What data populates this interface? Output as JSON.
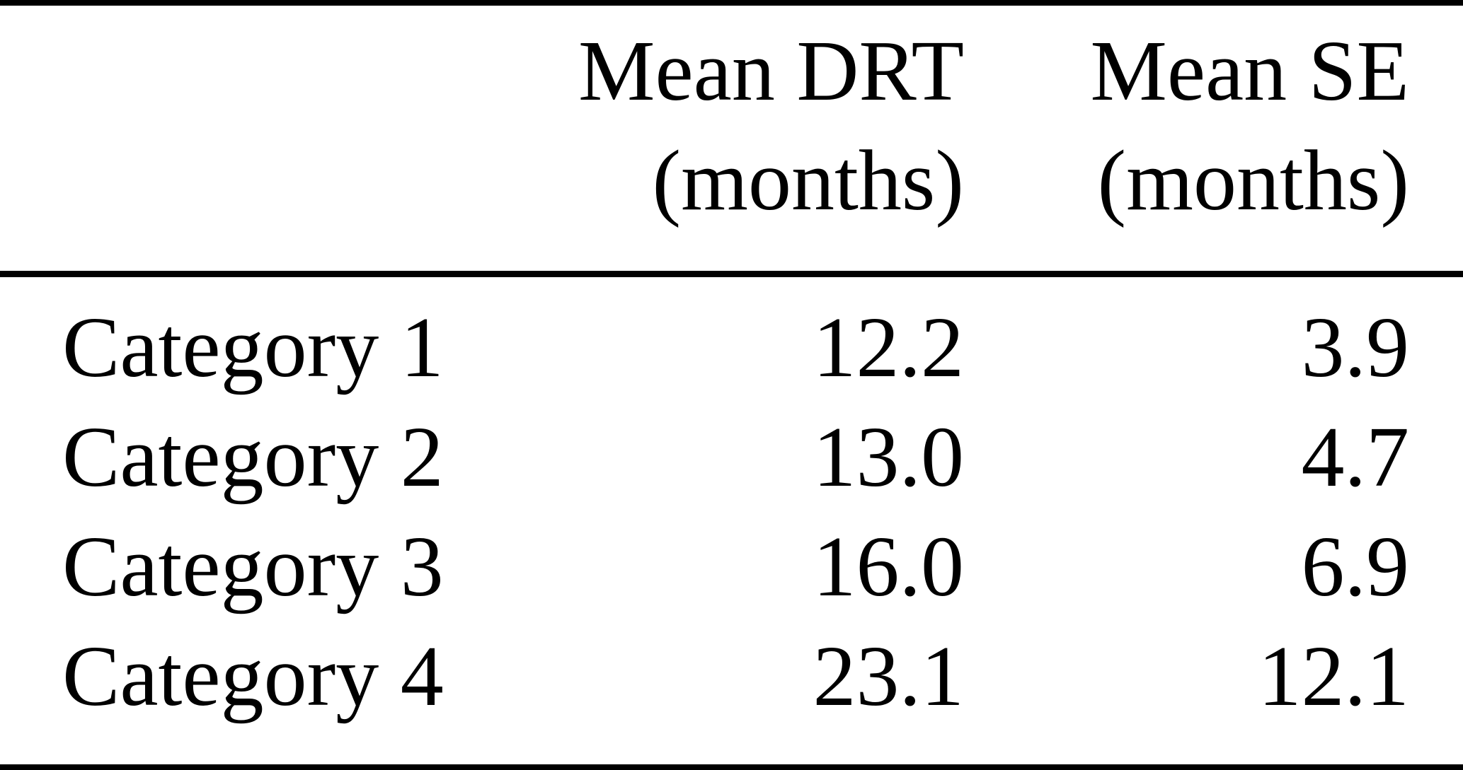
{
  "table": {
    "columns": [
      {
        "id": "mean_drt",
        "line1": "Mean DRT",
        "line2": "(months)"
      },
      {
        "id": "mean_se",
        "line1": "Mean SE",
        "line2": "(months)"
      }
    ],
    "rows": [
      {
        "label": "Category 1",
        "mean_drt": "12.2",
        "mean_se": "3.9"
      },
      {
        "label": "Category 2",
        "mean_drt": "13.0",
        "mean_se": "4.7"
      },
      {
        "label": "Category 3",
        "mean_drt": "16.0",
        "mean_se": "6.9"
      },
      {
        "label": "Category 4",
        "mean_drt": "23.1",
        "mean_se": "12.1"
      }
    ]
  },
  "chart_data": {
    "type": "table",
    "columns": [
      "",
      "Mean DRT (months)",
      "Mean SE (months)"
    ],
    "rows": [
      [
        "Category 1",
        12.2,
        3.9
      ],
      [
        "Category 2",
        13.0,
        4.7
      ],
      [
        "Category 3",
        16.0,
        6.9
      ],
      [
        "Category 4",
        23.1,
        12.1
      ]
    ]
  },
  "colors": {
    "text": "#000000",
    "background": "#ffffff",
    "rule": "#000000"
  }
}
